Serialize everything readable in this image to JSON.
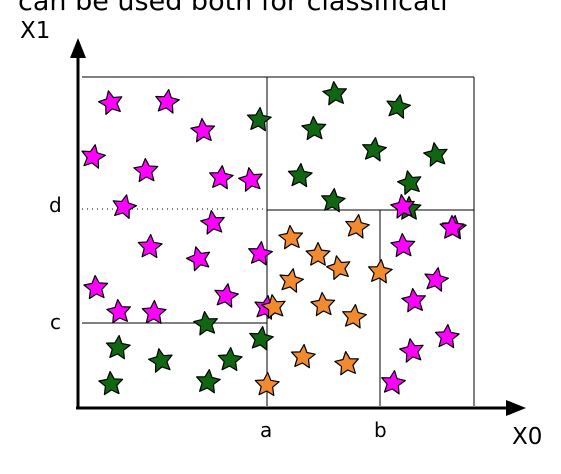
{
  "caption_clipped": "can be used both for classificati",
  "axes": {
    "y_label": "X1",
    "x_label": "X0"
  },
  "ticks": {
    "x": [
      "a",
      "b"
    ],
    "y": [
      "c",
      "d"
    ]
  },
  "colors": {
    "magenta": "#ff00ff",
    "green": "#116611",
    "orange": "#f28a30",
    "stroke": "#000000",
    "axis": "#000000"
  },
  "stars": [
    {
      "region": "left-top",
      "color": "magenta"
    },
    {
      "region": "left-top",
      "color": "magenta"
    },
    {
      "region": "left-top",
      "color": "magenta"
    },
    {
      "region": "left-top",
      "color": "magenta"
    },
    {
      "region": "left-top",
      "color": "magenta"
    },
    {
      "region": "left-top",
      "color": "magenta"
    },
    {
      "region": "left-top",
      "color": "magenta"
    },
    {
      "region": "left-top",
      "color": "green"
    },
    {
      "region": "left-mid",
      "color": "magenta"
    },
    {
      "region": "left-mid",
      "color": "magenta"
    },
    {
      "region": "left-mid",
      "color": "magenta"
    },
    {
      "region": "left-mid",
      "color": "magenta"
    },
    {
      "region": "left-mid",
      "color": "magenta"
    },
    {
      "region": "left-mid",
      "color": "magenta"
    },
    {
      "region": "left-mid",
      "color": "magenta"
    },
    {
      "region": "left-mid",
      "color": "magenta"
    },
    {
      "region": "left-mid",
      "color": "magenta"
    },
    {
      "region": "left-mid",
      "color": "magenta"
    },
    {
      "region": "left-bottom",
      "color": "green"
    },
    {
      "region": "left-bottom",
      "color": "green"
    },
    {
      "region": "left-bottom",
      "color": "green"
    },
    {
      "region": "left-bottom",
      "color": "green"
    },
    {
      "region": "left-bottom",
      "color": "green"
    },
    {
      "region": "left-bottom",
      "color": "green"
    },
    {
      "region": "left-bottom",
      "color": "green"
    },
    {
      "region": "right-top",
      "color": "green"
    },
    {
      "region": "right-top",
      "color": "green"
    },
    {
      "region": "right-top",
      "color": "green"
    },
    {
      "region": "right-top",
      "color": "green"
    },
    {
      "region": "right-top",
      "color": "green"
    },
    {
      "region": "right-top",
      "color": "green"
    },
    {
      "region": "right-top",
      "color": "green"
    },
    {
      "region": "right-top",
      "color": "green"
    },
    {
      "region": "right-top",
      "color": "green"
    },
    {
      "region": "mid-bottom",
      "color": "orange"
    },
    {
      "region": "mid-bottom",
      "color": "orange"
    },
    {
      "region": "mid-bottom",
      "color": "orange"
    },
    {
      "region": "mid-bottom",
      "color": "orange"
    },
    {
      "region": "mid-bottom",
      "color": "orange"
    },
    {
      "region": "mid-bottom",
      "color": "orange"
    },
    {
      "region": "mid-bottom",
      "color": "orange"
    },
    {
      "region": "mid-bottom",
      "color": "orange"
    },
    {
      "region": "mid-bottom",
      "color": "orange"
    },
    {
      "region": "mid-bottom",
      "color": "orange"
    },
    {
      "region": "mid-bottom",
      "color": "orange"
    },
    {
      "region": "mid-bottom",
      "color": "orange"
    },
    {
      "region": "right-bottom",
      "color": "magenta"
    },
    {
      "region": "right-bottom",
      "color": "magenta"
    },
    {
      "region": "right-bottom",
      "color": "magenta"
    },
    {
      "region": "right-bottom",
      "color": "magenta"
    },
    {
      "region": "right-bottom",
      "color": "magenta"
    },
    {
      "region": "right-bottom",
      "color": "magenta"
    },
    {
      "region": "right-bottom",
      "color": "magenta"
    },
    {
      "region": "right-bottom",
      "color": "magenta"
    },
    {
      "region": "right-bottom",
      "color": "magenta"
    }
  ]
}
